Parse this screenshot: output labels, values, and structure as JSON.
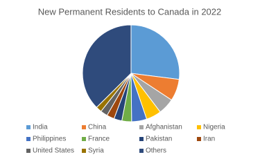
{
  "chart_data": {
    "type": "pie",
    "title": "New Permanent Residents to Canada in 2022",
    "categories": [
      "India",
      "China",
      "Afghanistan",
      "Nigeria",
      "Philippines",
      "France",
      "Pakistan",
      "Iran",
      "United States",
      "Syria",
      "Others"
    ],
    "values": [
      118095,
      31815,
      23735,
      22085,
      22070,
      14145,
      11585,
      11105,
      10400,
      8500,
      163645
    ],
    "colors": [
      "#5b9bd5",
      "#ed7d31",
      "#a5a5a5",
      "#ffc000",
      "#4472c4",
      "#70ad47",
      "#264478",
      "#9e480e",
      "#636363",
      "#997300",
      "#2f4b7c"
    ],
    "legend": "bottom"
  }
}
